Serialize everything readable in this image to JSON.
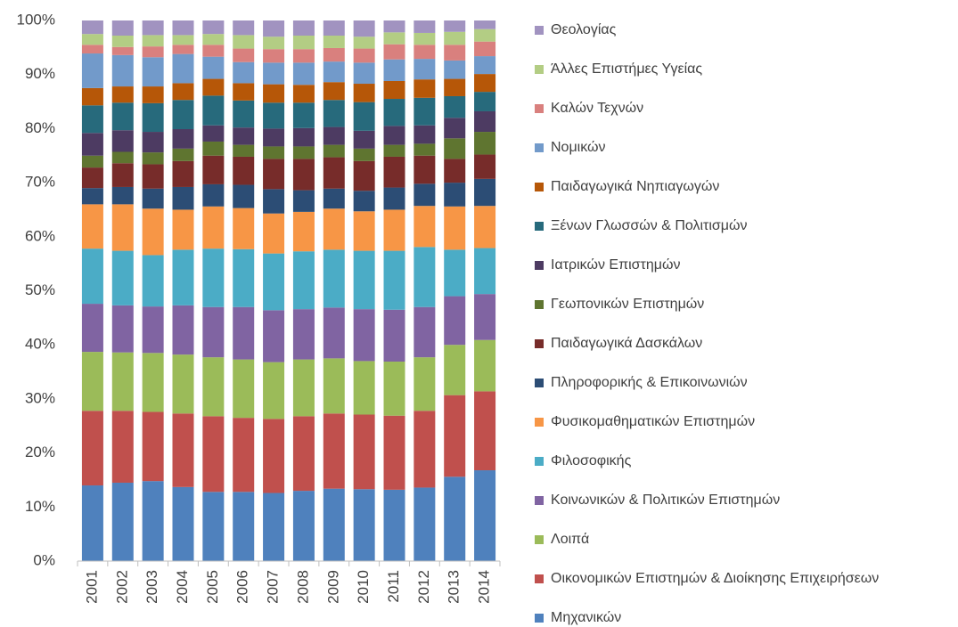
{
  "chart_data": {
    "type": "stacked_bar",
    "categories": [
      "2001",
      "2002",
      "2003",
      "2004",
      "2005",
      "2006",
      "2007",
      "2008",
      "2009",
      "2010",
      "2011",
      "2012",
      "2013",
      "2014"
    ],
    "ylim": [
      0,
      100
    ],
    "yticks": [
      {
        "value": 0,
        "label": "0%"
      },
      {
        "value": 10,
        "label": "10%"
      },
      {
        "value": 20,
        "label": "20%"
      },
      {
        "value": 30,
        "label": "30%"
      },
      {
        "value": 40,
        "label": "40%"
      },
      {
        "value": 50,
        "label": "50%"
      },
      {
        "value": 60,
        "label": "60%"
      },
      {
        "value": 70,
        "label": "70%"
      },
      {
        "value": 80,
        "label": "80%"
      },
      {
        "value": 90,
        "label": "90%"
      },
      {
        "value": 100,
        "label": "100%"
      }
    ],
    "legend_position": "right",
    "series": [
      {
        "name": "Μηχανικών",
        "color": "#4f81bd",
        "values": [
          14.0,
          14.5,
          14.8,
          13.7,
          12.8,
          12.8,
          12.6,
          13.0,
          13.4,
          13.3,
          13.2,
          13.6,
          15.6,
          16.8
        ]
      },
      {
        "name": "Οικονομικών Επιστημών & Διοίκησης Επιχειρήσεων",
        "color": "#c0504d",
        "values": [
          13.8,
          13.3,
          12.8,
          13.6,
          14.0,
          13.7,
          13.7,
          13.8,
          13.9,
          13.8,
          13.7,
          14.2,
          15.1,
          14.6
        ]
      },
      {
        "name": "Λοιπά",
        "color": "#9bbb59",
        "values": [
          10.9,
          10.8,
          10.9,
          10.9,
          10.9,
          10.8,
          10.5,
          10.5,
          10.2,
          9.9,
          10.0,
          9.9,
          9.3,
          9.5
        ]
      },
      {
        "name": "Κοινωνικών & Πολιτικών Επιστημών",
        "color": "#8064a2",
        "values": [
          8.9,
          8.7,
          8.6,
          9.1,
          9.3,
          9.7,
          9.6,
          9.3,
          9.4,
          9.6,
          9.6,
          9.3,
          9.0,
          8.5
        ]
      },
      {
        "name": "Φιλοσοφικής",
        "color": "#4bacc6",
        "values": [
          10.2,
          10.1,
          9.5,
          10.3,
          10.8,
          10.7,
          10.5,
          10.7,
          10.7,
          10.8,
          10.9,
          11.1,
          8.6,
          8.5
        ]
      },
      {
        "name": "Φυσικομαθηματικών Επιστημών",
        "color": "#f79646",
        "values": [
          8.2,
          8.6,
          8.6,
          7.4,
          7.8,
          7.6,
          7.4,
          7.3,
          7.6,
          7.3,
          7.6,
          7.6,
          8.0,
          7.8
        ]
      },
      {
        "name": "Πληροφορικής & Επικοινωνιών",
        "color": "#2c4d75",
        "values": [
          3.0,
          3.2,
          3.7,
          4.2,
          4.1,
          4.3,
          4.5,
          4.0,
          3.7,
          3.8,
          4.1,
          4.1,
          4.4,
          5.0
        ]
      },
      {
        "name": "Παιδαγωγικά Δασκάλων",
        "color": "#772c2a",
        "values": [
          3.8,
          4.4,
          4.5,
          4.8,
          5.3,
          5.2,
          5.6,
          5.8,
          5.8,
          5.5,
          5.7,
          5.2,
          4.4,
          4.5
        ]
      },
      {
        "name": "Γεωπονικών Επιστημών",
        "color": "#5f7530",
        "values": [
          2.2,
          2.1,
          2.2,
          2.3,
          2.6,
          2.2,
          2.3,
          2.3,
          2.3,
          2.3,
          2.2,
          2.2,
          3.8,
          4.2
        ]
      },
      {
        "name": "Ιατρικών Επιστημών",
        "color": "#4d3b62",
        "values": [
          4.2,
          4.0,
          3.8,
          3.6,
          3.0,
          3.2,
          3.3,
          3.4,
          3.3,
          3.3,
          3.5,
          3.4,
          3.8,
          3.8
        ]
      },
      {
        "name": "Ξένων Γλωσσών & Πολιτισμών",
        "color": "#276a7c",
        "values": [
          5.1,
          5.1,
          5.3,
          5.4,
          5.5,
          5.0,
          4.8,
          4.7,
          5.0,
          5.3,
          5.0,
          5.1,
          4.0,
          3.6
        ]
      },
      {
        "name": "Παιδαγωγικά Νηπιαγωγών",
        "color": "#b65708",
        "values": [
          3.2,
          3.0,
          3.1,
          3.1,
          3.1,
          3.2,
          3.4,
          3.3,
          3.3,
          3.4,
          3.3,
          3.4,
          3.2,
          3.3
        ]
      },
      {
        "name": "Νομικών",
        "color": "#729aca",
        "values": [
          6.4,
          5.8,
          5.4,
          5.4,
          4.1,
          3.9,
          4.0,
          4.1,
          3.8,
          3.9,
          4.0,
          3.8,
          3.4,
          3.3
        ]
      },
      {
        "name": "Καλών Τεχνών",
        "color": "#d9807e",
        "values": [
          1.6,
          1.5,
          2.0,
          1.7,
          2.2,
          2.5,
          2.5,
          2.5,
          2.5,
          2.6,
          2.8,
          2.6,
          2.9,
          2.7
        ]
      },
      {
        "name": "Άλλες Επιστήμες Υγείας",
        "color": "#b3cd84",
        "values": [
          2.0,
          2.1,
          2.1,
          1.8,
          2.0,
          2.5,
          2.3,
          2.5,
          2.3,
          2.2,
          2.2,
          2.2,
          2.4,
          2.3
        ]
      },
      {
        "name": "Θεολογίας",
        "color": "#a193c0",
        "values": [
          2.5,
          2.8,
          2.7,
          2.7,
          2.5,
          2.7,
          3.0,
          2.8,
          2.8,
          3.0,
          2.2,
          2.3,
          2.1,
          1.6
        ]
      }
    ]
  }
}
